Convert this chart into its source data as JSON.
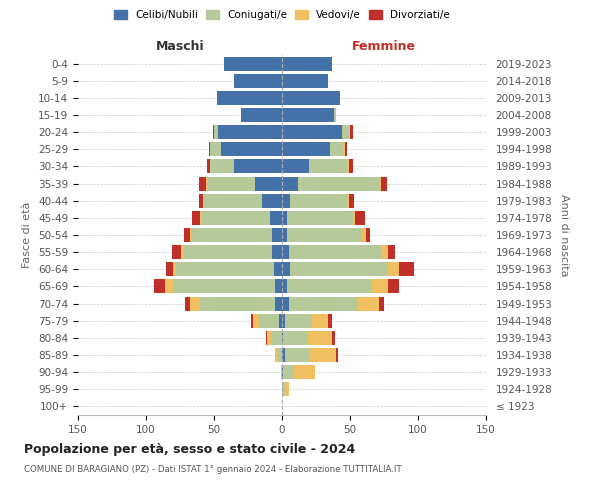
{
  "age_groups": [
    "100+",
    "95-99",
    "90-94",
    "85-89",
    "80-84",
    "75-79",
    "70-74",
    "65-69",
    "60-64",
    "55-59",
    "50-54",
    "45-49",
    "40-44",
    "35-39",
    "30-34",
    "25-29",
    "20-24",
    "15-19",
    "10-14",
    "5-9",
    "0-4"
  ],
  "birth_years": [
    "≤ 1923",
    "1924-1928",
    "1929-1933",
    "1934-1938",
    "1939-1943",
    "1944-1948",
    "1949-1953",
    "1954-1958",
    "1959-1963",
    "1964-1968",
    "1969-1973",
    "1974-1978",
    "1979-1983",
    "1984-1988",
    "1989-1993",
    "1994-1998",
    "1999-2003",
    "2004-2008",
    "2009-2013",
    "2014-2018",
    "2019-2023"
  ],
  "male": {
    "celibe": [
      0,
      0,
      0,
      0,
      0,
      2,
      5,
      5,
      6,
      7,
      7,
      9,
      15,
      20,
      35,
      45,
      47,
      30,
      48,
      35,
      43
    ],
    "coniugato": [
      0,
      0,
      1,
      3,
      8,
      15,
      55,
      75,
      72,
      65,
      60,
      50,
      42,
      35,
      18,
      8,
      3,
      0,
      0,
      0,
      0
    ],
    "vedovo": [
      0,
      0,
      0,
      2,
      3,
      4,
      8,
      6,
      2,
      2,
      1,
      1,
      1,
      1,
      0,
      0,
      0,
      0,
      0,
      0,
      0
    ],
    "divorziato": [
      0,
      0,
      0,
      0,
      1,
      2,
      3,
      8,
      5,
      7,
      4,
      6,
      3,
      5,
      2,
      1,
      1,
      0,
      0,
      0,
      0
    ]
  },
  "female": {
    "nubile": [
      0,
      0,
      1,
      2,
      1,
      2,
      5,
      4,
      6,
      5,
      4,
      4,
      6,
      12,
      20,
      35,
      44,
      38,
      43,
      34,
      37
    ],
    "coniugata": [
      0,
      2,
      8,
      18,
      18,
      20,
      50,
      62,
      72,
      68,
      55,
      48,
      42,
      60,
      28,
      10,
      5,
      2,
      0,
      0,
      0
    ],
    "vedova": [
      0,
      3,
      15,
      20,
      18,
      12,
      16,
      12,
      8,
      5,
      3,
      2,
      1,
      1,
      1,
      1,
      1,
      0,
      0,
      0,
      0
    ],
    "divorziata": [
      0,
      0,
      0,
      1,
      2,
      3,
      4,
      8,
      11,
      5,
      3,
      7,
      4,
      4,
      3,
      2,
      2,
      0,
      0,
      0,
      0
    ]
  },
  "colors": {
    "celibe": "#4472a8",
    "coniugato": "#b5c99a",
    "vedovo": "#f0c060",
    "divorziato": "#c0302a"
  },
  "xlim": 150,
  "title": "Popolazione per età, sesso e stato civile - 2024",
  "subtitle": "COMUNE DI BARAGIANO (PZ) - Dati ISTAT 1° gennaio 2024 - Elaborazione TUTTITALIA.IT",
  "xlabel_left": "Maschi",
  "xlabel_right": "Femmine",
  "ylabel_left": "Fasce di età",
  "ylabel_right": "Anni di nascita",
  "legend_labels": [
    "Celibi/Nubili",
    "Coniugati/e",
    "Vedovi/e",
    "Divorziati/e"
  ],
  "bg_color": "#ffffff",
  "grid_color": "#cccccc",
  "bar_height": 0.82,
  "maschi_color": "#333333",
  "femmine_color": "#c0302a"
}
